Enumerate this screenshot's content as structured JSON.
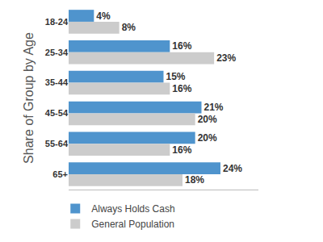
{
  "chart_data": {
    "type": "bar",
    "orientation": "horizontal",
    "ylabel": "Share of Group by Age",
    "categories": [
      "18-24",
      "25-34",
      "35-44",
      "45-54",
      "55-64",
      "65+"
    ],
    "series": [
      {
        "name": "Always Holds Cash",
        "color": "#4f94cd",
        "values": [
          4,
          16,
          15,
          21,
          20,
          24
        ],
        "value_labels": [
          "4%",
          "16%",
          "15%",
          "21%",
          "20%",
          "24%"
        ]
      },
      {
        "name": "General Population",
        "color": "#cccccc",
        "values": [
          8,
          23,
          16,
          20,
          16,
          18
        ],
        "value_labels": [
          "8%",
          "23%",
          "16%",
          "20%",
          "16%",
          "18%"
        ]
      }
    ],
    "xlim": [
      0,
      30
    ],
    "xticks": [],
    "grid": false,
    "legend": "bottom left",
    "data_labels": true,
    "tick_labels": "y"
  }
}
